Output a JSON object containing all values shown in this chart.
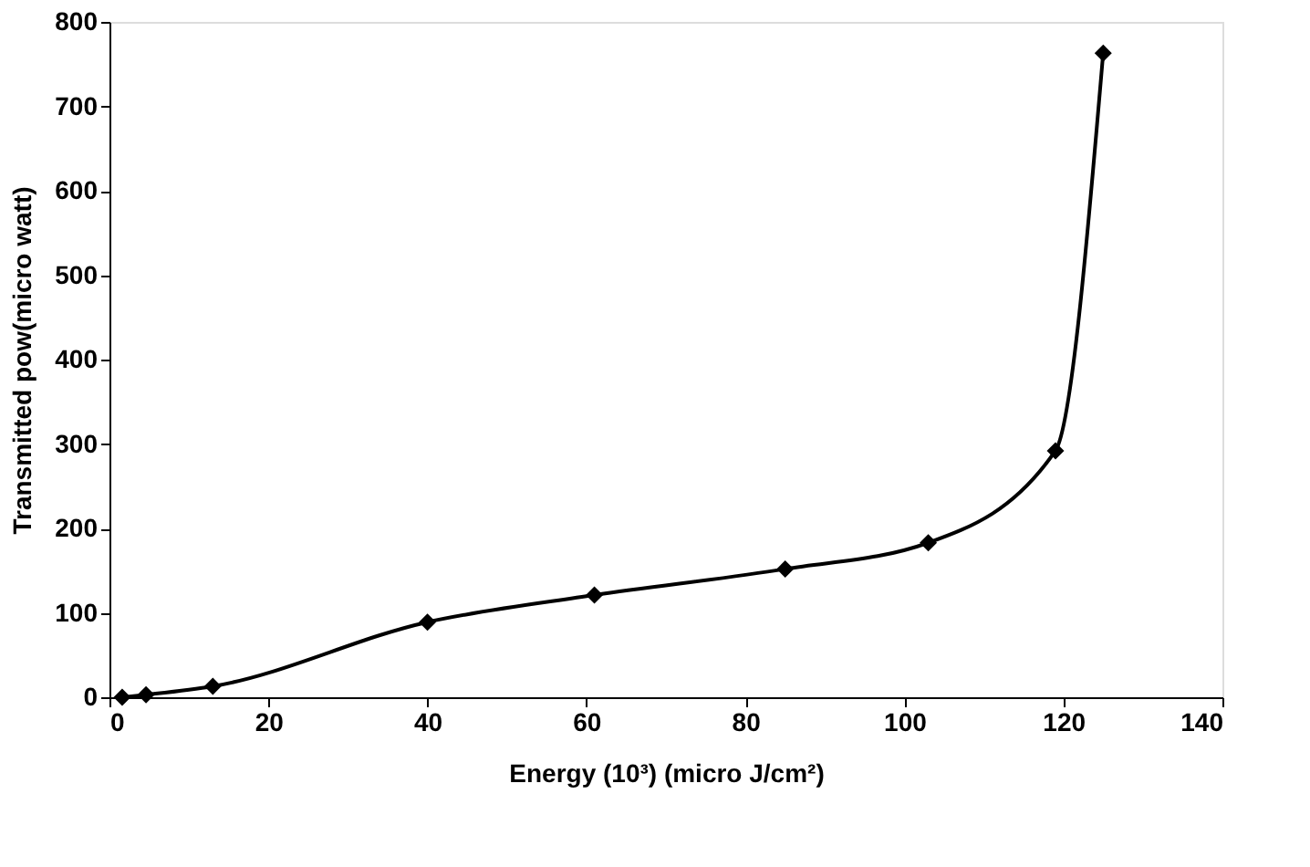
{
  "chart_data": {
    "type": "line",
    "xlabel": "Energy (10³) (micro J/cm²)",
    "ylabel": "Transmitted pow(micro watt)",
    "x": [
      1.6,
      4.6,
      13,
      40,
      61,
      85,
      103,
      119,
      125
    ],
    "series": [
      {
        "color": "#000000",
        "values": [
          0,
          3,
          13,
          89,
          121,
          152,
          183,
          292,
          763
        ]
      }
    ],
    "xlim": [
      0,
      140
    ],
    "xticks": [
      0,
      20,
      40,
      60,
      80,
      100,
      120,
      140
    ],
    "ylim": [
      0,
      800
    ],
    "yticks": [
      0,
      100,
      200,
      300,
      400,
      500,
      600,
      700,
      800
    ],
    "grid": false,
    "marker": "diamond",
    "line_style": "solid"
  }
}
